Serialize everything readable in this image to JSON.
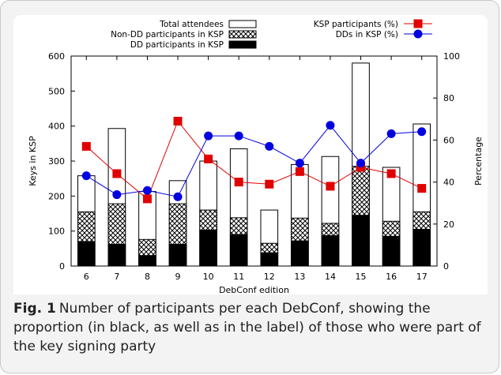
{
  "chart_data": {
    "type": "bar",
    "xlabel": "DebConf edition",
    "ylabel": "Keys in KSP",
    "y2label": "Percentage",
    "ylim": [
      0,
      600
    ],
    "y2lim": [
      0,
      100
    ],
    "yticks": [
      "0",
      "100",
      "200",
      "300",
      "400",
      "500",
      "600"
    ],
    "y2ticks": [
      "0",
      "20",
      "40",
      "60",
      "80",
      "100"
    ],
    "categories": [
      "6",
      "7",
      "8",
      "9",
      "10",
      "11",
      "12",
      "13",
      "14",
      "15",
      "16",
      "17"
    ],
    "bar_series": [
      {
        "name": "Total attendees",
        "values": [
          258,
          393,
          213,
          244,
          300,
          335,
          160,
          290,
          313,
          580,
          282,
          406
        ],
        "style": "outline"
      },
      {
        "name": "Non-DD participants in KSP",
        "values": [
          155,
          178,
          76,
          178,
          160,
          138,
          65,
          137,
          122,
          285,
          128,
          155
        ],
        "style": "crosshatch"
      },
      {
        "name": "DD participants in KSP",
        "values": [
          70,
          62,
          30,
          62,
          103,
          90,
          38,
          72,
          87,
          145,
          85,
          105
        ],
        "style": "solid"
      }
    ],
    "line_series": [
      {
        "name": "KSP participants (%)",
        "color": "#e00000",
        "marker": "square",
        "values": [
          57,
          44,
          32,
          69,
          51,
          40,
          39,
          45,
          38,
          47,
          44,
          37
        ]
      },
      {
        "name": "DDs in KSP (%)",
        "color": "#0000e0",
        "marker": "circle",
        "values": [
          43,
          34,
          36,
          33,
          62,
          62,
          57,
          49,
          67,
          49,
          63,
          64
        ]
      }
    ],
    "legend_left": "top-left",
    "legend_right": "top-right",
    "grid": false
  },
  "caption": {
    "label": "Fig. 1",
    "text": "Number of participants per each DebConf, showing the proportion (in black, as well as in the label) of those who were part of the key signing party"
  }
}
